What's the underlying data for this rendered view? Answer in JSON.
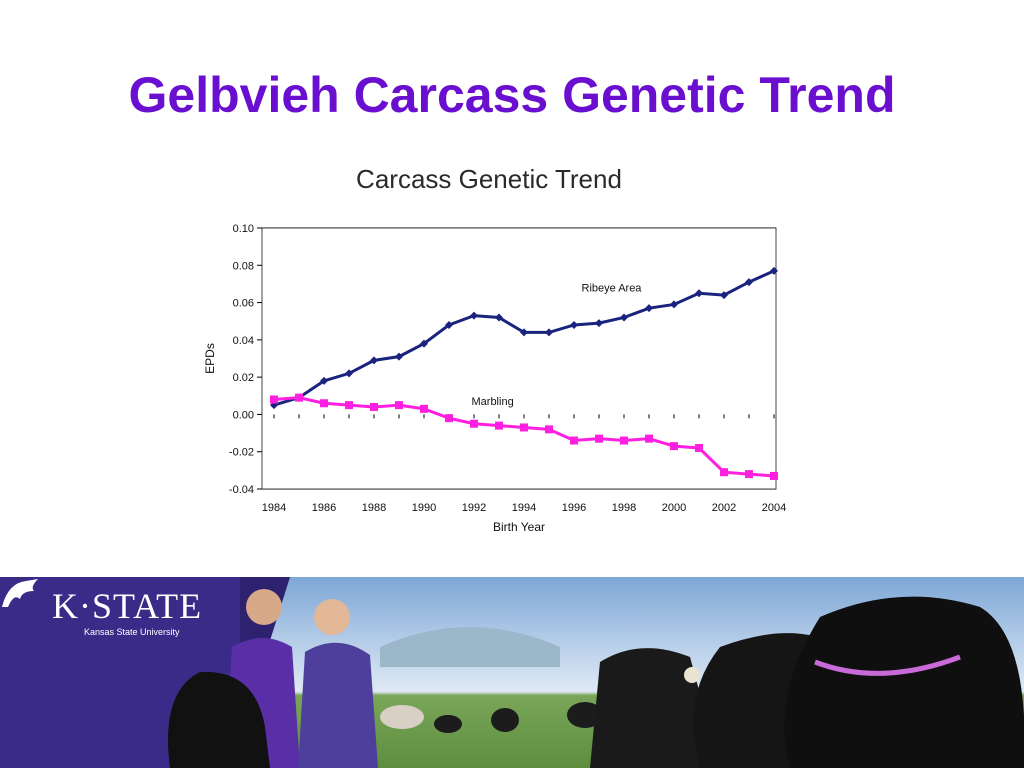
{
  "slide": {
    "title": "Gelbvieh Carcass Genetic Trend",
    "title_color": "#6a0fd0"
  },
  "chart_data": {
    "type": "line",
    "title": "Carcass Genetic Trend",
    "xlabel": "Birth Year",
    "ylabel": "EPDs",
    "x": [
      1984,
      1985,
      1986,
      1987,
      1988,
      1989,
      1990,
      1991,
      1992,
      1993,
      1994,
      1995,
      1996,
      1997,
      1998,
      1999,
      2000,
      2001,
      2002,
      2003,
      2004
    ],
    "x_ticks": [
      1984,
      1986,
      1988,
      1990,
      1992,
      1994,
      1996,
      1998,
      2000,
      2002,
      2004
    ],
    "y_ticks": [
      "0.10",
      "0.08",
      "0.06",
      "0.04",
      "0.02",
      "0.00",
      "-0.02",
      "-0.04"
    ],
    "y_tick_values": [
      0.1,
      0.08,
      0.06,
      0.04,
      0.02,
      0.0,
      -0.02,
      -0.04
    ],
    "ylim": [
      -0.04,
      0.1
    ],
    "xlim": [
      1984,
      2004
    ],
    "grid": "horizontal",
    "series": [
      {
        "name": "Ribeye Area",
        "color": "#1a237e",
        "marker": "diamond",
        "label_at": [
          1996.3,
          0.066
        ],
        "values": [
          0.005,
          0.009,
          0.018,
          0.022,
          0.029,
          0.031,
          0.038,
          0.048,
          0.053,
          0.052,
          0.044,
          0.044,
          0.048,
          0.049,
          0.052,
          0.057,
          0.059,
          0.065,
          0.064,
          0.071,
          0.077
        ]
      },
      {
        "name": "Marbling",
        "color": "#ff1fe0",
        "marker": "square",
        "label_at": [
          1991.9,
          0.005
        ],
        "values": [
          0.008,
          0.009,
          0.006,
          0.005,
          0.004,
          0.005,
          0.003,
          -0.002,
          -0.005,
          -0.006,
          -0.007,
          -0.008,
          -0.014,
          -0.013,
          -0.014,
          -0.013,
          -0.017,
          -0.018,
          -0.031,
          -0.032,
          -0.033
        ]
      }
    ]
  },
  "banner": {
    "logo_text": "K·STATE",
    "logo_subtitle": "Kansas State University",
    "logo_color": "#3b2b89",
    "wildcat_icon": "wildcat-icon"
  }
}
